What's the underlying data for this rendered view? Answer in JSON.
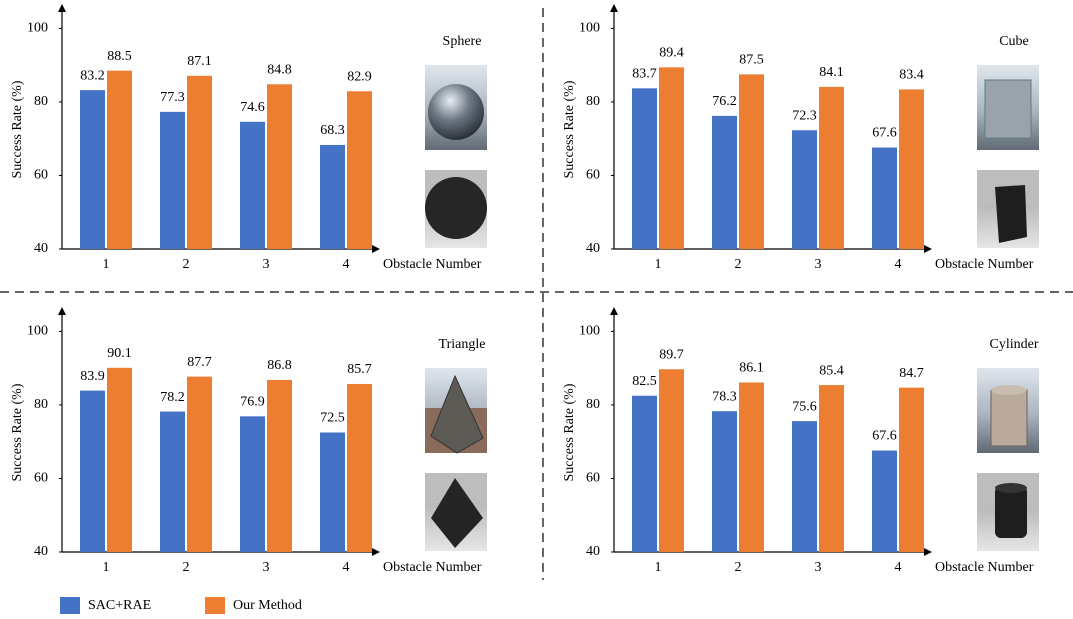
{
  "chart_data": [
    {
      "type": "bar",
      "title": "Sphere",
      "x_label": "Obstacle Number",
      "y_label": "Success Rate (%)",
      "categories": [
        "1",
        "2",
        "3",
        "4"
      ],
      "series": [
        {
          "name": "SAC+RAE",
          "color": "#4472c4",
          "values": [
            83.2,
            77.3,
            74.6,
            68.3
          ]
        },
        {
          "name": "Our Method",
          "color": "#ed7d31",
          "values": [
            88.5,
            87.1,
            84.8,
            82.9
          ]
        }
      ],
      "ylim": [
        40,
        105
      ],
      "yticks": [
        40,
        60,
        80,
        100
      ]
    },
    {
      "type": "bar",
      "title": "Cube",
      "x_label": "Obstacle Number",
      "y_label": "Success Rate (%)",
      "categories": [
        "1",
        "2",
        "3",
        "4"
      ],
      "series": [
        {
          "color": "#4472c4",
          "values": [
            83.7,
            76.2,
            72.3,
            67.6
          ]
        },
        {
          "color": "#ed7d31",
          "values": [
            89.4,
            87.5,
            84.1,
            83.4
          ]
        }
      ],
      "ylim": [
        40,
        105
      ],
      "yticks": [
        40,
        60,
        80,
        100
      ]
    },
    {
      "type": "bar",
      "title": "Triangle",
      "x_label": "Obstacle Number",
      "y_label": "Success Rate (%)",
      "categories": [
        "1",
        "2",
        "3",
        "4"
      ],
      "series": [
        {
          "color": "#4472c4",
          "values": [
            83.9,
            78.2,
            76.9,
            72.5
          ]
        },
        {
          "color": "#ed7d31",
          "values": [
            90.1,
            87.7,
            86.8,
            85.7
          ]
        }
      ],
      "ylim": [
        40,
        105
      ],
      "yticks": [
        40,
        60,
        80,
        100
      ]
    },
    {
      "type": "bar",
      "title": "Cylinder",
      "x_label": "Obstacle Number",
      "y_label": "Success Rate (%)",
      "categories": [
        "1",
        "2",
        "3",
        "4"
      ],
      "series": [
        {
          "color": "#4472c4",
          "values": [
            82.5,
            78.3,
            75.6,
            67.6
          ]
        },
        {
          "color": "#ed7d31",
          "values": [
            89.7,
            86.1,
            85.4,
            84.7
          ]
        }
      ],
      "ylim": [
        40,
        105
      ],
      "yticks": [
        40,
        60,
        80,
        100
      ]
    }
  ]
}
